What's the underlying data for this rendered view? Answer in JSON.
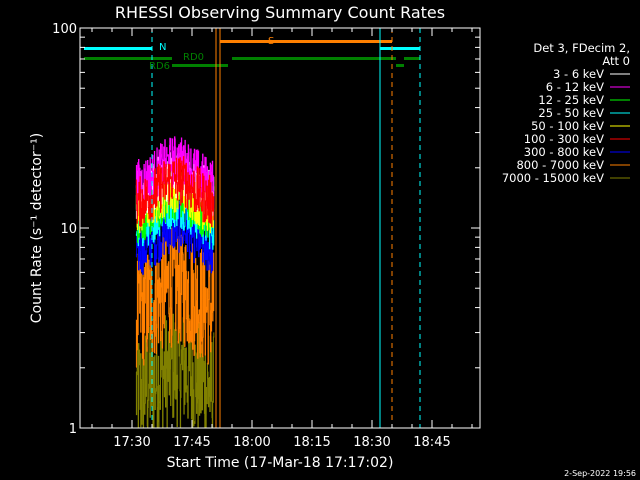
{
  "chart_data": {
    "type": "line",
    "title": "RHESSI Observing Summary Count Rates",
    "xlabel": "Start Time (17-Mar-18 17:17:02)",
    "ylabel": "Count Rate (s⁻¹ detector⁻¹)",
    "y_scale": "log",
    "ylim": [
      1,
      100
    ],
    "y_ticks": [
      1,
      10,
      100
    ],
    "y_tick_labels": [
      "1",
      "10",
      "100"
    ],
    "xlim_minutes_of_day": [
      1037,
      1137
    ],
    "x_ticks": [
      1050,
      1065,
      1080,
      1095,
      1110,
      1125
    ],
    "x_tick_labels": [
      "17:30",
      "17:45",
      "18:00",
      "18:15",
      "18:30",
      "18:45"
    ],
    "grid": false,
    "legend_header": "Det 3, FDecim 2, Att 0",
    "legend_position": "top-right",
    "data_window_minutes_of_day": [
      1051,
      1070.5
    ],
    "series": [
      {
        "name": "3 - 6 keV",
        "color": "#ffffff",
        "level": 14
      },
      {
        "name": "6 - 12 keV",
        "color": "#ff00ff",
        "level": 16
      },
      {
        "name": "12 - 25 keV",
        "color": "#00ff00",
        "level": 11
      },
      {
        "name": "25 - 50 keV",
        "color": "#00ffff",
        "level": 10
      },
      {
        "name": "50 - 100 keV",
        "color": "#ffff00",
        "level": 12
      },
      {
        "name": "100 - 300 keV",
        "color": "#ff0000",
        "level": 13
      },
      {
        "name": "300 - 800 keV",
        "color": "#0000ff",
        "level": 7.5
      },
      {
        "name": "800 - 7000 keV",
        "color": "#ff8000",
        "level": 3.8
      },
      {
        "name": "7000 - 15000 keV",
        "color": "#808000",
        "level": 1.5
      }
    ],
    "annotations": {
      "N": "N",
      "S": "S",
      "RD0": "RD0",
      "RD6": "RD6"
    },
    "flag_bars": {
      "night": [
        [
          1038,
          1055
        ],
        [
          1112,
          1122
        ]
      ],
      "saa": [
        [
          1072,
          1115
        ]
      ],
      "decimation": [
        [
          1038,
          1060
        ],
        [
          1075,
          1116
        ],
        [
          1118,
          1122
        ]
      ],
      "rd6": [
        [
          1060,
          1074
        ],
        [
          1116,
          1118
        ]
      ]
    },
    "vertical_lines": {
      "cyan_solid": [
        1037,
        1112
      ],
      "cyan_dashed": [
        1055,
        1122
      ],
      "orange_solid": [
        1071,
        1072
      ],
      "orange_dashed": [
        1115
      ]
    }
  },
  "footer_timestamp": "2-Sep-2022 19:56"
}
